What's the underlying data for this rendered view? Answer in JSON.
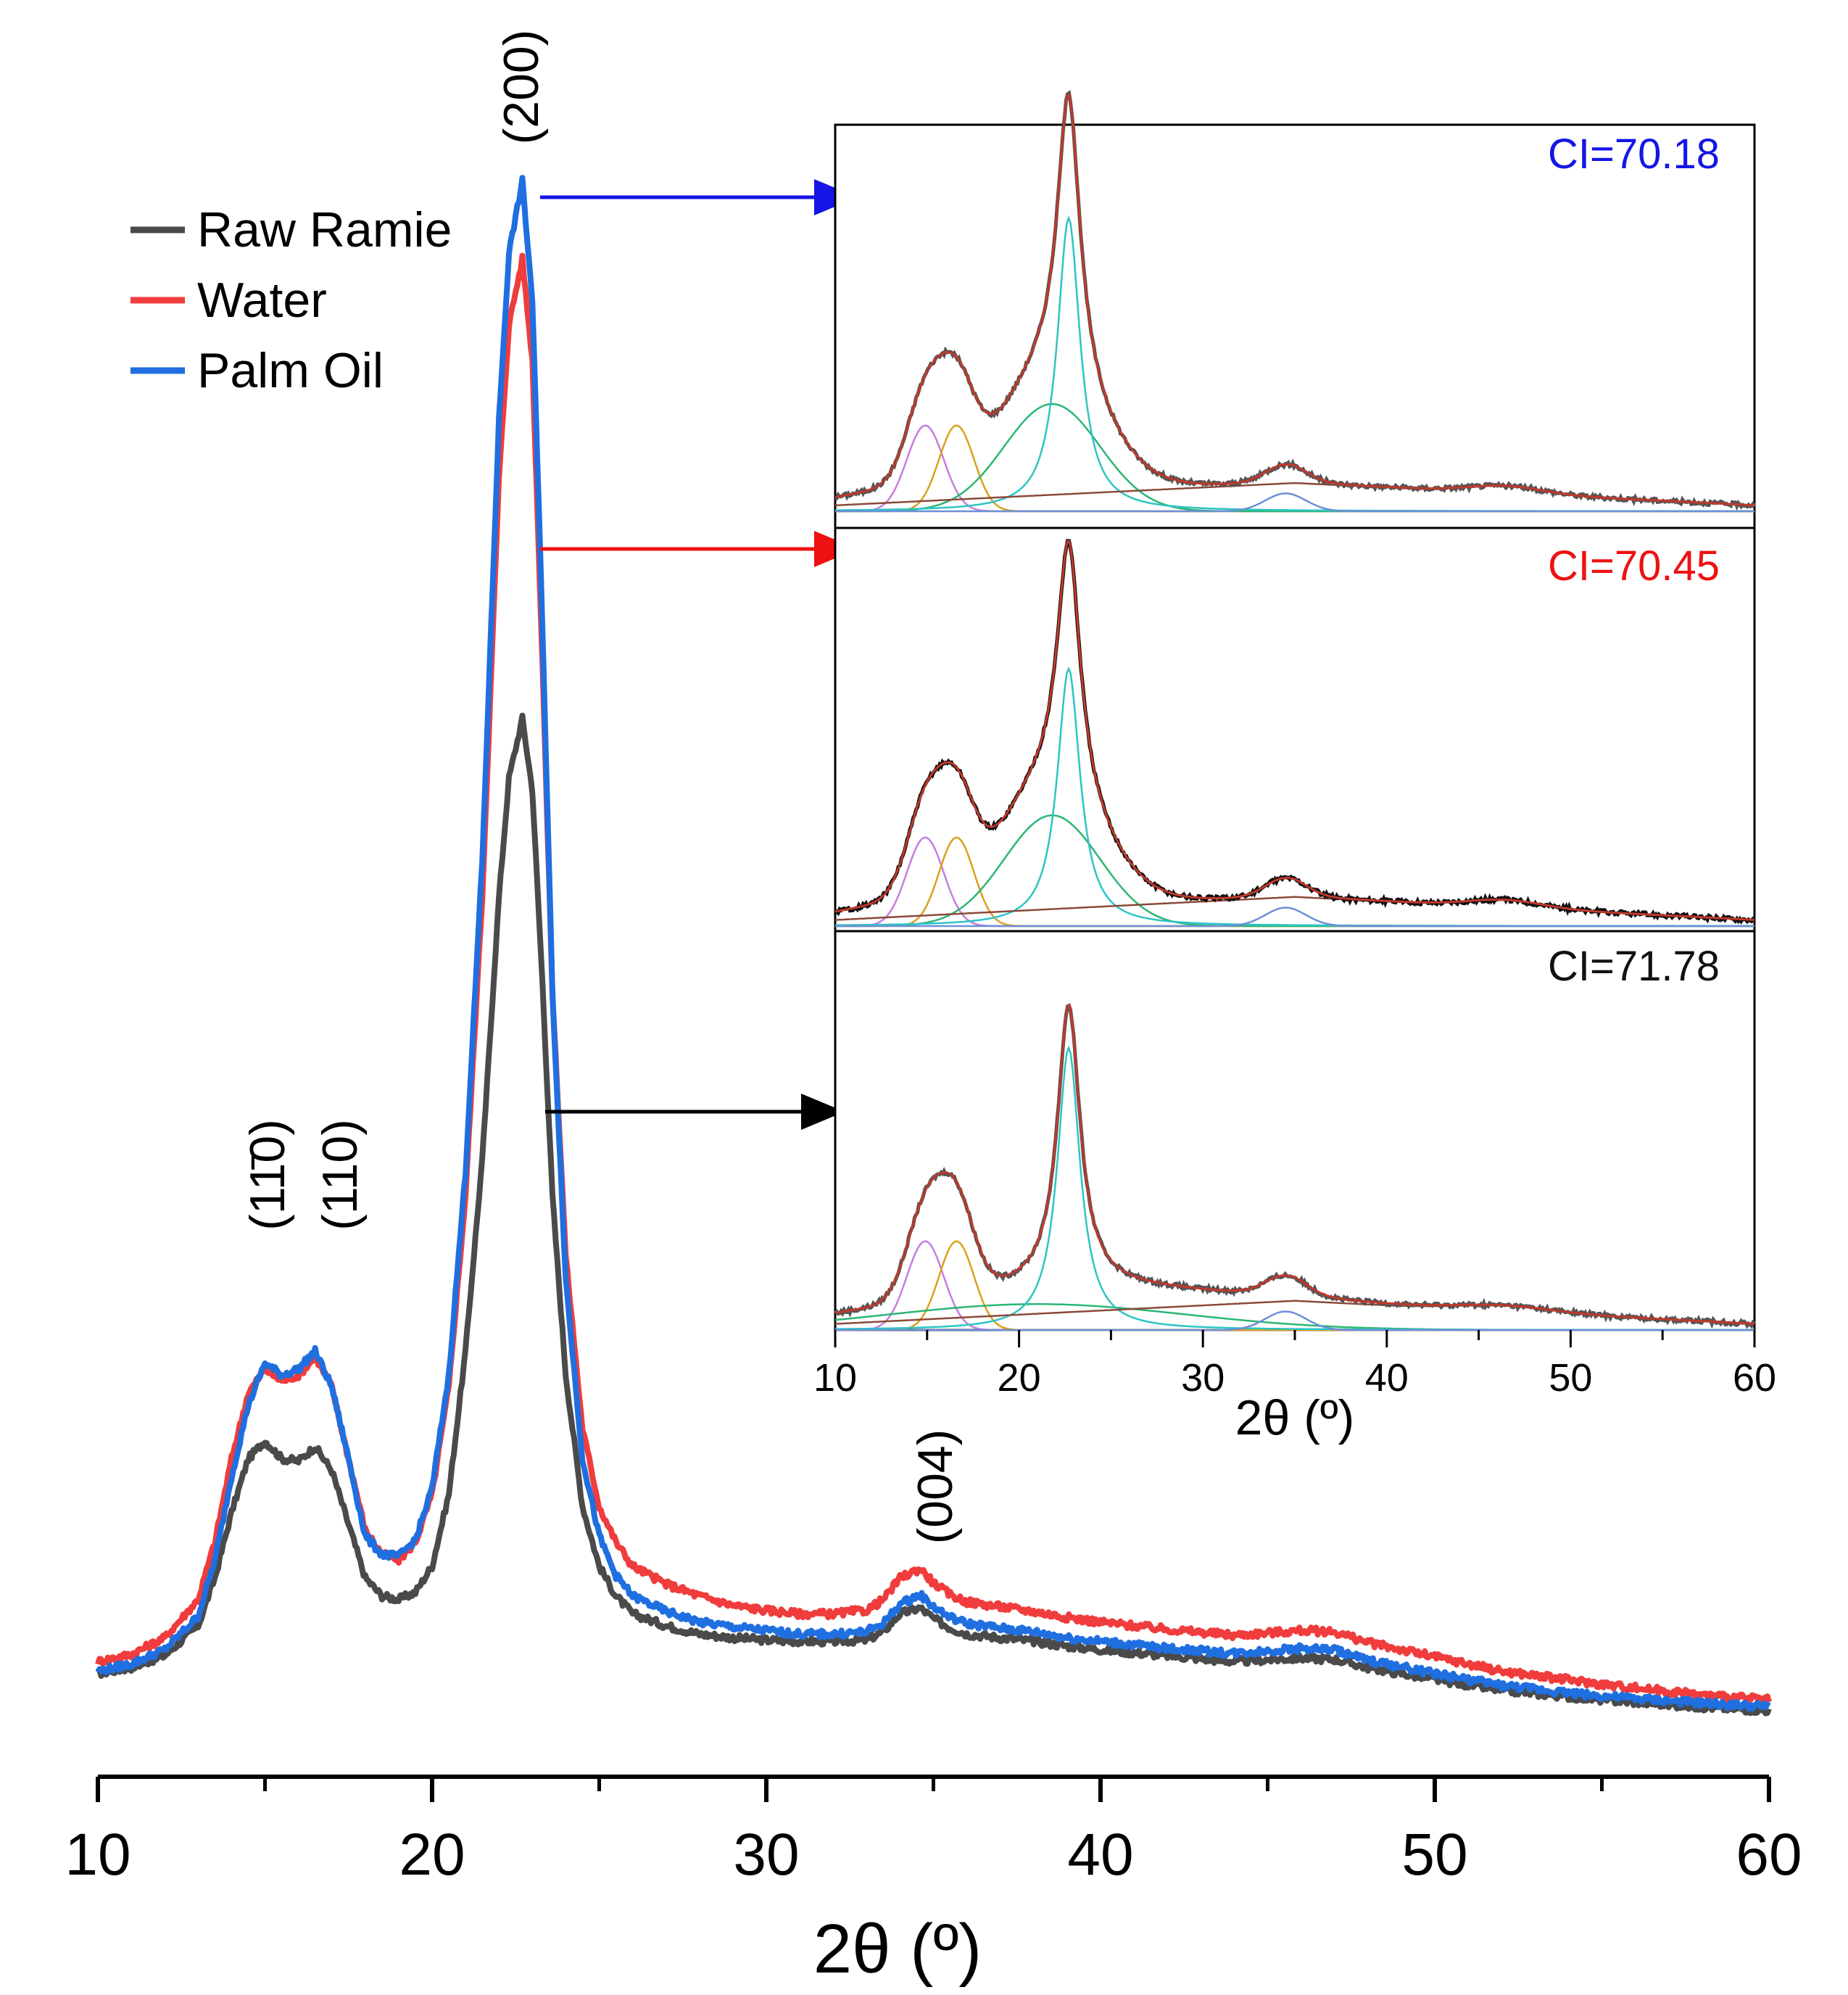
{
  "chart_data": [
    {
      "type": "line",
      "panel": "main",
      "xlabel": "2θ (º)",
      "ylabel": "",
      "xlim": [
        10,
        60
      ],
      "xticks": [
        10,
        20,
        30,
        40,
        50,
        60
      ],
      "x_minor_ticks": [
        15,
        25,
        35,
        45,
        55
      ],
      "y_axis_shown": false,
      "grid": false,
      "legend": {
        "placement": "top-left"
      },
      "series": [
        {
          "name": "Raw Ramie",
          "color": "#4a4a4a",
          "x": [
            10,
            11,
            12,
            13,
            13.5,
            14,
            14.5,
            15,
            15.5,
            16,
            16.5,
            17,
            17.5,
            18,
            18.5,
            19,
            19.5,
            20,
            20.5,
            21,
            21.5,
            22,
            22.3,
            22.7,
            23,
            23.3,
            23.6,
            24,
            24.5,
            25,
            25.5,
            26,
            27,
            28,
            29,
            30,
            31,
            32,
            33,
            33.5,
            34,
            34.6,
            35,
            35.5,
            36,
            37,
            38,
            39,
            40,
            42,
            44,
            46,
            47,
            48,
            50,
            52,
            55,
            58,
            60
          ],
          "values": [
            0.05,
            0.055,
            0.065,
            0.09,
            0.13,
            0.185,
            0.23,
            0.245,
            0.23,
            0.228,
            0.24,
            0.22,
            0.175,
            0.13,
            0.115,
            0.112,
            0.118,
            0.14,
            0.2,
            0.32,
            0.48,
            0.7,
            0.8,
            0.85,
            0.79,
            0.63,
            0.45,
            0.3,
            0.19,
            0.14,
            0.115,
            0.1,
            0.09,
            0.083,
            0.08,
            0.078,
            0.077,
            0.077,
            0.078,
            0.085,
            0.1,
            0.105,
            0.096,
            0.088,
            0.083,
            0.08,
            0.077,
            0.073,
            0.07,
            0.065,
            0.06,
            0.063,
            0.062,
            0.055,
            0.045,
            0.036,
            0.028,
            0.022,
            0.019
          ]
        },
        {
          "name": "Water",
          "color": "#f03c3c",
          "x": [
            10,
            11,
            12,
            13,
            13.5,
            14,
            14.5,
            15,
            15.5,
            16,
            16.5,
            17,
            17.5,
            18,
            18.5,
            19,
            19.5,
            20,
            20.5,
            21,
            21.5,
            22,
            22.3,
            22.7,
            23,
            23.3,
            23.6,
            24,
            24.5,
            25,
            25.5,
            26,
            27,
            28,
            29,
            30,
            31,
            32,
            33,
            33.5,
            34,
            34.6,
            35,
            35.5,
            36,
            37,
            38,
            39,
            40,
            42,
            44,
            46,
            47,
            48,
            50,
            52,
            55,
            58,
            60
          ],
          "values": [
            0.06,
            0.066,
            0.08,
            0.112,
            0.16,
            0.23,
            0.285,
            0.305,
            0.295,
            0.3,
            0.315,
            0.29,
            0.23,
            0.17,
            0.15,
            0.145,
            0.16,
            0.2,
            0.29,
            0.45,
            0.7,
            1.05,
            1.18,
            1.235,
            1.15,
            0.9,
            0.62,
            0.4,
            0.255,
            0.19,
            0.16,
            0.14,
            0.125,
            0.115,
            0.107,
            0.103,
            0.1,
            0.1,
            0.103,
            0.112,
            0.13,
            0.138,
            0.126,
            0.116,
            0.11,
            0.106,
            0.102,
            0.097,
            0.093,
            0.087,
            0.082,
            0.086,
            0.085,
            0.076,
            0.064,
            0.052,
            0.041,
            0.032,
            0.028
          ]
        },
        {
          "name": "Palm Oil",
          "color": "#1f6fe0",
          "x": [
            10,
            11,
            12,
            13,
            13.5,
            14,
            14.5,
            15,
            15.5,
            16,
            16.5,
            17,
            17.5,
            18,
            18.5,
            19,
            19.5,
            20,
            20.5,
            21,
            21.5,
            22,
            22.3,
            22.7,
            23,
            23.3,
            23.6,
            24,
            24.5,
            25,
            25.5,
            26,
            27,
            28,
            29,
            30,
            31,
            32,
            33,
            33.5,
            34,
            34.6,
            35,
            35.5,
            36,
            37,
            38,
            39,
            40,
            42,
            44,
            46,
            47,
            48,
            50,
            52,
            55,
            58,
            60
          ],
          "values": [
            0.052,
            0.058,
            0.07,
            0.098,
            0.145,
            0.215,
            0.275,
            0.31,
            0.3,
            0.305,
            0.32,
            0.29,
            0.23,
            0.165,
            0.15,
            0.148,
            0.162,
            0.205,
            0.3,
            0.47,
            0.73,
            1.1,
            1.24,
            1.3,
            1.2,
            0.93,
            0.62,
            0.38,
            0.23,
            0.165,
            0.132,
            0.115,
            0.102,
            0.093,
            0.089,
            0.086,
            0.083,
            0.083,
            0.085,
            0.092,
            0.108,
            0.116,
            0.106,
            0.097,
            0.092,
            0.088,
            0.085,
            0.08,
            0.077,
            0.071,
            0.067,
            0.071,
            0.07,
            0.061,
            0.05,
            0.04,
            0.031,
            0.025,
            0.022
          ]
        }
      ],
      "annotations": [
        {
          "label": "(200)",
          "x": 22.7
        },
        {
          "label": "(11̄0)",
          "x": 15.0
        },
        {
          "label": "(110)",
          "x": 16.5
        },
        {
          "label": "(004)",
          "x": 34.6
        }
      ],
      "arrows": [
        {
          "from_series": "Palm Oil",
          "to_panel": "CI=70.18",
          "color": "#1515e6"
        },
        {
          "from_series": "Water",
          "to_panel": "CI=70.45",
          "color": "#ee1111"
        },
        {
          "from_series": "Raw Ramie",
          "to_panel": "CI=71.78",
          "color": "#000000"
        }
      ]
    },
    {
      "type": "line",
      "panel": "inset",
      "xlabel": "2θ (º)",
      "xlim": [
        10,
        60
      ],
      "xticks": [
        10,
        20,
        30,
        40,
        50,
        60
      ],
      "x_minor_ticks": [
        15,
        25,
        35,
        45,
        55
      ],
      "subpanels": [
        {
          "name": "palm-oil-fit",
          "ci_label": "CI=70.18",
          "ci_color": "#1515e6",
          "observed_color": "#555555",
          "fit_color": "#c0392b",
          "crystalline_peak": 1.0,
          "amorphous_peak": 0.3
        },
        {
          "name": "water-fit",
          "ci_label": "CI=70.45",
          "ci_color": "#ee1111",
          "observed_color": "#111111",
          "fit_color": "#c0392b",
          "crystalline_peak": 0.85,
          "amorphous_peak": 0.3
        },
        {
          "name": "raw-ramie-fit",
          "ci_label": "CI=71.78",
          "ci_color": "#111111",
          "observed_color": "#555555",
          "fit_color": "#c0392b",
          "crystalline_peak": 0.93,
          "amorphous_peak": 0.06
        }
      ],
      "fit_components": [
        {
          "name": "peak-1-bar0",
          "center": 14.9,
          "width": 1.2,
          "color": "#c77dde"
        },
        {
          "name": "peak-110",
          "center": 16.6,
          "width": 1.1,
          "color": "#d9a21b"
        },
        {
          "name": "amorphous",
          "center": 21.8,
          "width": 3.2,
          "color": "#2bb673"
        },
        {
          "name": "peak-200",
          "center": 22.7,
          "width": 0.85,
          "color": "#2ec4c4"
        },
        {
          "name": "peak-004",
          "center": 34.5,
          "width": 1.2,
          "color": "#6d8fd6"
        },
        {
          "name": "background",
          "center": 0,
          "width": 0,
          "color": "#8b4a3a"
        }
      ]
    }
  ],
  "legend_items": [
    {
      "label": "Raw Ramie",
      "color": "#4a4a4a"
    },
    {
      "label": "Water",
      "color": "#f03c3c"
    },
    {
      "label": "Palm Oil",
      "color": "#1f6fe0"
    }
  ]
}
